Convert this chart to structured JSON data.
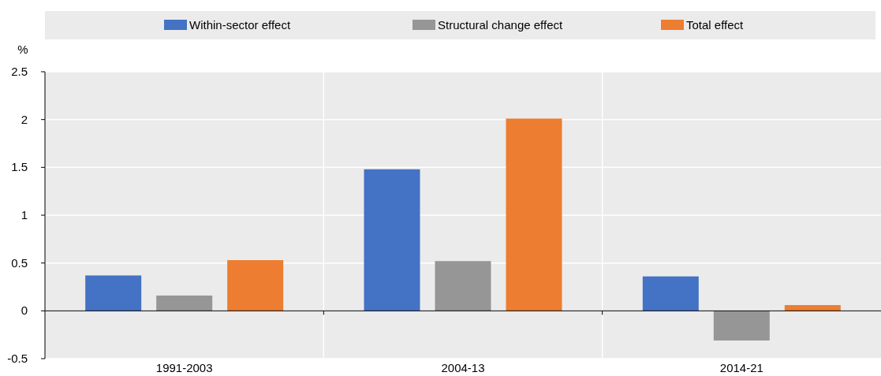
{
  "chart_data": {
    "type": "bar",
    "ylabel": "%",
    "categories": [
      "1991-2003",
      "2004-13",
      "2014-21"
    ],
    "series": [
      {
        "name": "Within-sector effect",
        "color": "#4472c4",
        "values": [
          0.37,
          1.48,
          0.36
        ]
      },
      {
        "name": "Structural change effect",
        "color": "#969696",
        "values": [
          0.16,
          0.52,
          -0.31
        ]
      },
      {
        "name": "Total effect",
        "color": "#ed7d31",
        "values": [
          0.53,
          2.01,
          0.06
        ]
      }
    ],
    "ylim": [
      -0.5,
      2.5
    ],
    "yticks": [
      -0.5,
      0,
      0.5,
      1,
      1.5,
      2,
      2.5
    ],
    "grid": "y",
    "legend": "top"
  }
}
